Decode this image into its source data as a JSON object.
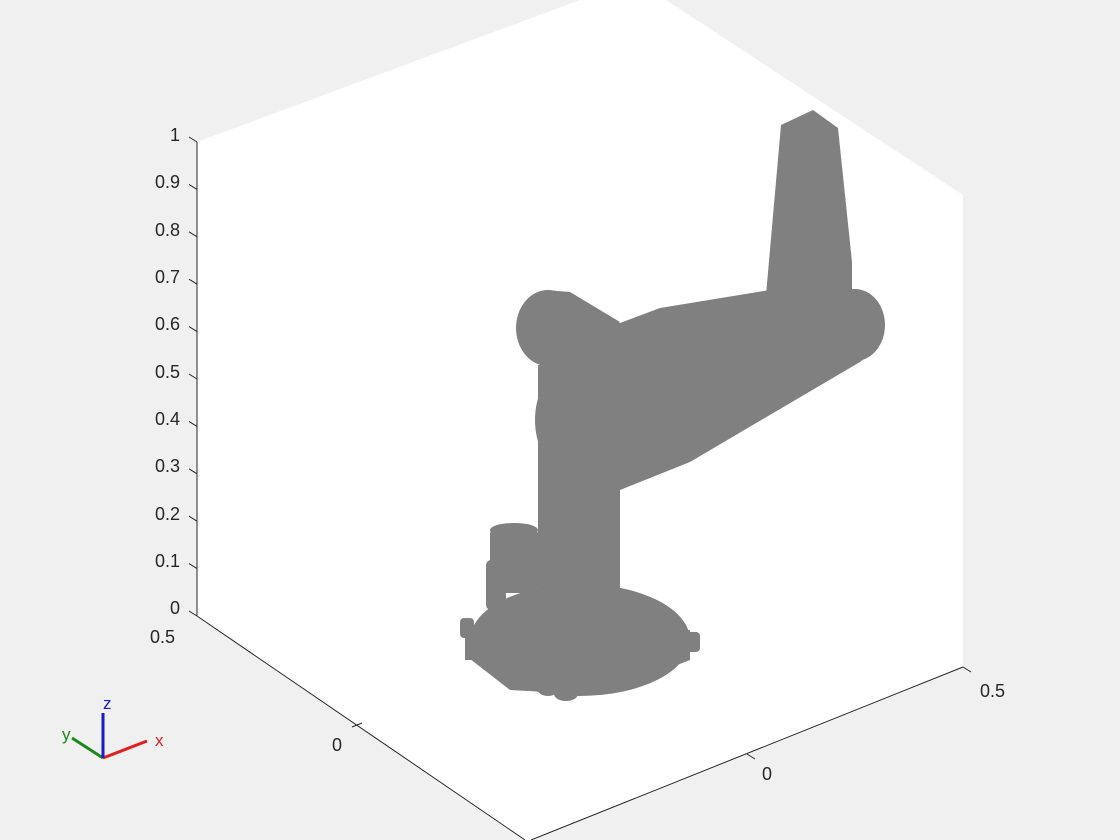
{
  "figure": {
    "background": "#f0f0f0",
    "axes_background": "#ffffff",
    "axis_line_color": "#262626"
  },
  "axes": {
    "z_ticks": [
      "0",
      "0.1",
      "0.2",
      "0.3",
      "0.4",
      "0.5",
      "0.6",
      "0.7",
      "0.8",
      "0.9",
      "1"
    ],
    "y_ticks": [
      "0.5",
      "0"
    ],
    "x_ticks": [
      "0",
      "0.5"
    ]
  },
  "robot": {
    "color": "#808080"
  },
  "triad": {
    "x_label": "x",
    "y_label": "y",
    "z_label": "z",
    "x_color": "#e02020",
    "y_color": "#1a8a1a",
    "z_color": "#1a1ad0"
  }
}
